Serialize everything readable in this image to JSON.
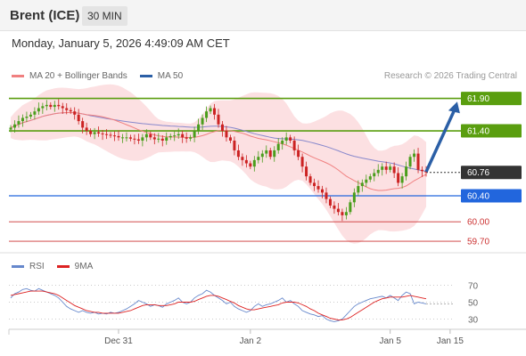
{
  "header": {
    "title": "Brent (ICE)",
    "timeframe": "30 MIN"
  },
  "datetime": "Monday, January 5, 2026 4:49:09 AM CET",
  "legend": {
    "ma20": "MA 20 + Bollinger Bands",
    "ma50": "MA 50",
    "copyright": "Research © 2026 Trading Central"
  },
  "rsi_legend": {
    "rsi": "RSI",
    "ma9": "9MA"
  },
  "colors": {
    "resistance": "#5a9e0f",
    "support": "#2266dd",
    "target": "#cc3333",
    "current": "#333333",
    "bollinger": "#fbd6d8",
    "ma20": "#f08080",
    "ma50": "#8888cc",
    "rsi": "#6688cc",
    "rsi_ma": "#dd2222",
    "candle_up": "#4a9e1c",
    "candle_down": "#cc2222",
    "arrow": "#2b5fa6"
  },
  "chart_data": {
    "type": "candlestick",
    "price_ylim": [
      59.55,
      62.1
    ],
    "levels": [
      {
        "value": 61.9,
        "label": "61.90",
        "kind": "resistance"
      },
      {
        "value": 61.4,
        "label": "61.40",
        "kind": "resistance"
      },
      {
        "value": 60.76,
        "label": "60.76",
        "kind": "current"
      },
      {
        "value": 60.4,
        "label": "60.40",
        "kind": "support"
      },
      {
        "value": 60.0,
        "label": "60.00",
        "kind": "target"
      },
      {
        "value": 59.7,
        "label": "59.70",
        "kind": "target"
      }
    ],
    "x_ticks": [
      {
        "index": 27,
        "label": "Dec 31"
      },
      {
        "index": 60,
        "label": "Jan 2"
      },
      {
        "index": 95,
        "label": "Jan 5"
      },
      {
        "index": 110,
        "label": "Jan 15"
      }
    ],
    "arrow": {
      "from_index": 104,
      "from": 60.77,
      "to_index": 110,
      "to": 61.85
    },
    "closes": [
      61.45,
      61.5,
      61.55,
      61.6,
      61.62,
      61.65,
      61.7,
      61.75,
      61.78,
      61.8,
      61.77,
      61.8,
      61.78,
      61.75,
      61.72,
      61.7,
      61.65,
      61.55,
      61.45,
      61.4,
      61.35,
      61.38,
      61.36,
      61.35,
      61.34,
      61.33,
      61.32,
      61.3,
      61.3,
      61.3,
      61.28,
      61.27,
      61.25,
      61.3,
      61.35,
      61.3,
      61.27,
      61.28,
      61.25,
      61.3,
      61.32,
      61.33,
      61.35,
      61.3,
      61.28,
      61.3,
      61.4,
      61.5,
      61.6,
      61.7,
      61.75,
      61.65,
      61.5,
      61.4,
      61.3,
      61.25,
      61.1,
      61.0,
      60.95,
      60.9,
      60.85,
      60.95,
      61.0,
      61.05,
      61.1,
      61.0,
      61.1,
      61.2,
      61.25,
      61.3,
      61.25,
      61.1,
      61.0,
      60.85,
      60.7,
      60.6,
      60.55,
      60.5,
      60.45,
      60.35,
      60.25,
      60.2,
      60.15,
      60.1,
      60.15,
      60.3,
      60.45,
      60.55,
      60.6,
      60.65,
      60.7,
      60.75,
      60.8,
      60.85,
      60.8,
      60.85,
      60.75,
      60.6,
      60.7,
      60.85,
      61.0,
      61.05,
      60.8,
      60.78,
      60.76
    ],
    "rsi_ylim": [
      20,
      80
    ],
    "rsi_ticks": [
      70,
      50,
      30
    ],
    "rsi": [
      55,
      60,
      62,
      65,
      66,
      64,
      63,
      66,
      64,
      62,
      60,
      58,
      55,
      50,
      45,
      42,
      40,
      38,
      40,
      38,
      37,
      38,
      36,
      37,
      36,
      38,
      37,
      38,
      40,
      42,
      45,
      48,
      52,
      50,
      48,
      45,
      47,
      46,
      44,
      48,
      50,
      52,
      55,
      50,
      48,
      50,
      55,
      58,
      60,
      64,
      62,
      58,
      55,
      52,
      48,
      50,
      45,
      42,
      40,
      38,
      40,
      45,
      48,
      45,
      47,
      48,
      50,
      52,
      55,
      50,
      52,
      48,
      45,
      40,
      38,
      36,
      35,
      33,
      34,
      30,
      28,
      27,
      28,
      30,
      35,
      40,
      45,
      48,
      50,
      52,
      54,
      55,
      56,
      57,
      55,
      58,
      55,
      52,
      58,
      62,
      60,
      48,
      50,
      49,
      48
    ],
    "rsi_ma": [
      58,
      59,
      60,
      61,
      62,
      63,
      63,
      63,
      63,
      62,
      61,
      60,
      58,
      55,
      52,
      49,
      46,
      44,
      42,
      40,
      39,
      38,
      38,
      37,
      37,
      37,
      37,
      37,
      38,
      39,
      40,
      42,
      44,
      46,
      47,
      47,
      47,
      46,
      46,
      46,
      47,
      48,
      50,
      50,
      50,
      50,
      51,
      53,
      55,
      57,
      58,
      58,
      57,
      55,
      53,
      51,
      49,
      46,
      44,
      42,
      41,
      41,
      42,
      43,
      44,
      45,
      46,
      47,
      49,
      50,
      50,
      50,
      49,
      47,
      45,
      42,
      40,
      37,
      35,
      33,
      31,
      30,
      29,
      29,
      30,
      32,
      35,
      38,
      41,
      44,
      47,
      50,
      52,
      54,
      55,
      56,
      56,
      56,
      56,
      57,
      58,
      57,
      56,
      55,
      54
    ]
  }
}
